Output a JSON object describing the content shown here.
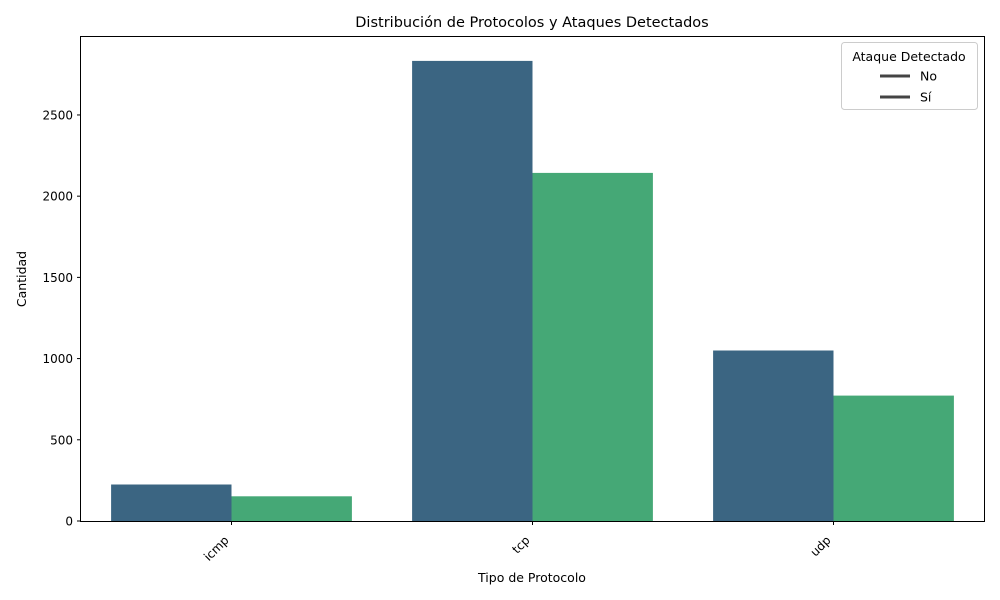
{
  "chart_data": {
    "type": "bar",
    "title": "Distribución de Protocolos y Ataques Detectados",
    "xlabel": "Tipo de Protocolo",
    "ylabel": "Cantidad",
    "categories": [
      "icmp",
      "tcp",
      "udp"
    ],
    "series": [
      {
        "name": "No",
        "color": "#3b6582",
        "values": [
          225,
          2833,
          1050
        ]
      },
      {
        "name": "Sí",
        "color": "#45a876",
        "values": [
          152,
          2143,
          772
        ]
      }
    ],
    "ylim": [
      0,
      2980
    ],
    "yticks": [
      0,
      500,
      1000,
      1500,
      2000,
      2500
    ],
    "grid": false,
    "legend": {
      "title": "Ataque Detectado",
      "placement": "top-right"
    },
    "x_tick_rotation": "45"
  }
}
